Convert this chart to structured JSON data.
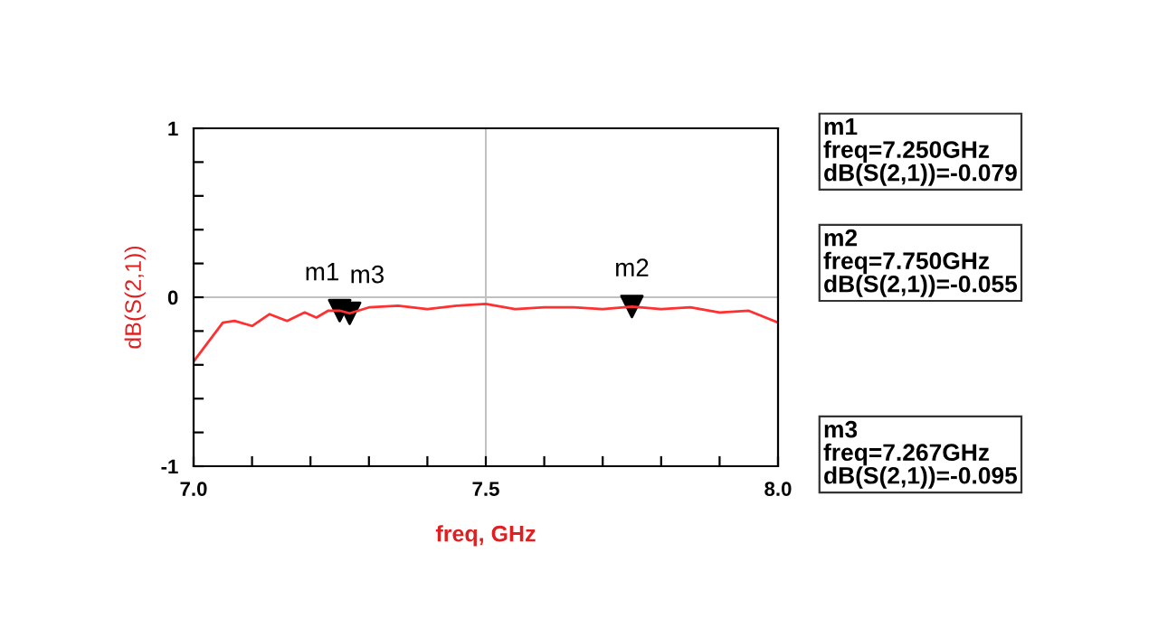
{
  "chart_data": {
    "type": "line",
    "xlabel": "freq, GHz",
    "ylabel": "dB(S(2,1))",
    "xlim": [
      7.0,
      8.0
    ],
    "ylim": [
      -1,
      1
    ],
    "xticks": [
      {
        "value": 7.0,
        "label": "7.0"
      },
      {
        "value": 7.1,
        "label": null
      },
      {
        "value": 7.2,
        "label": null
      },
      {
        "value": 7.3,
        "label": null
      },
      {
        "value": 7.4,
        "label": null
      },
      7.5,
      {
        "value": 7.6,
        "label": null
      },
      {
        "value": 7.7,
        "label": null
      },
      {
        "value": 7.8,
        "label": null
      },
      {
        "value": 7.9,
        "label": null
      },
      {
        "value": 8.0,
        "label": "8.0"
      }
    ],
    "yticks": [
      -1,
      {
        "value": -0.8,
        "label": null
      },
      {
        "value": -0.6,
        "label": null
      },
      {
        "value": -0.4,
        "label": null
      },
      {
        "value": -0.2,
        "label": null
      },
      0,
      {
        "value": 0.2,
        "label": null
      },
      {
        "value": 0.4,
        "label": null
      },
      {
        "value": 0.6,
        "label": null
      },
      {
        "value": 0.8,
        "label": null
      },
      1
    ],
    "grid": true,
    "legend": false,
    "series": [
      {
        "color": "#ff3030",
        "x": [
          7.0,
          7.05,
          7.07,
          7.1,
          7.13,
          7.16,
          7.19,
          7.21,
          7.23,
          7.25,
          7.267,
          7.3,
          7.35,
          7.4,
          7.45,
          7.5,
          7.55,
          7.6,
          7.65,
          7.7,
          7.75,
          7.8,
          7.85,
          7.9,
          7.95,
          8.0
        ],
        "values": [
          -0.38,
          -0.15,
          -0.14,
          -0.17,
          -0.1,
          -0.14,
          -0.09,
          -0.12,
          -0.08,
          -0.079,
          -0.095,
          -0.06,
          -0.05,
          -0.07,
          -0.05,
          -0.04,
          -0.07,
          -0.06,
          -0.06,
          -0.07,
          -0.055,
          -0.07,
          -0.06,
          -0.09,
          -0.08,
          -0.15
        ]
      },
      {
        "type": "scatter",
        "color": "#000000",
        "marker": "triangle",
        "x": [
          7.25,
          7.75,
          7.267
        ],
        "values": [
          -0.079,
          -0.055,
          -0.095
        ]
      }
    ],
    "annotations": [
      {
        "text": "m1",
        "x": 7.25,
        "y": -0.079
      },
      {
        "text": "m2",
        "x": 7.75,
        "y": -0.055
      },
      {
        "text": "m3",
        "x": 7.267,
        "y": -0.095
      },
      "m1\nfreq=7.250GHz\ndB(S(2,1))=-0.079",
      "m2\nfreq=7.750GHz\ndB(S(2,1))=-0.055",
      "m3\nfreq=7.267GHz\ndB(S(2,1))=-0.095"
    ]
  }
}
